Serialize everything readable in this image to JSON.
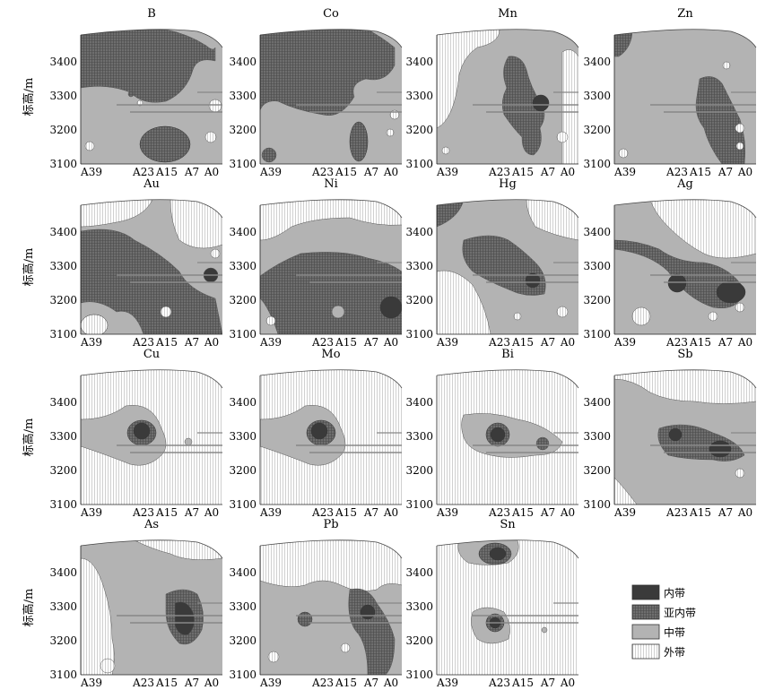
{
  "y_axis_label": "标高/m",
  "y_ticks": [
    "3400",
    "3300",
    "3200",
    "3100"
  ],
  "x_ticks": [
    "A39",
    "A23",
    "A15",
    "A7",
    "A0"
  ],
  "panels": [
    {
      "title": "B"
    },
    {
      "title": "Co"
    },
    {
      "title": "Mn"
    },
    {
      "title": "Zn"
    },
    {
      "title": "Au"
    },
    {
      "title": "Ni"
    },
    {
      "title": "Hg"
    },
    {
      "title": "Ag"
    },
    {
      "title": "Cu"
    },
    {
      "title": "Mo"
    },
    {
      "title": "Bi"
    },
    {
      "title": "Sb"
    },
    {
      "title": "As"
    },
    {
      "title": "Pb"
    },
    {
      "title": "Sn"
    }
  ],
  "legend": [
    {
      "label": "内带",
      "fill": "#3a3a3a"
    },
    {
      "label": "亚内带",
      "fill": "#777777"
    },
    {
      "label": "中带",
      "fill": "#b3b3b3"
    },
    {
      "label": "外带",
      "fill": "#ffffff"
    }
  ]
}
